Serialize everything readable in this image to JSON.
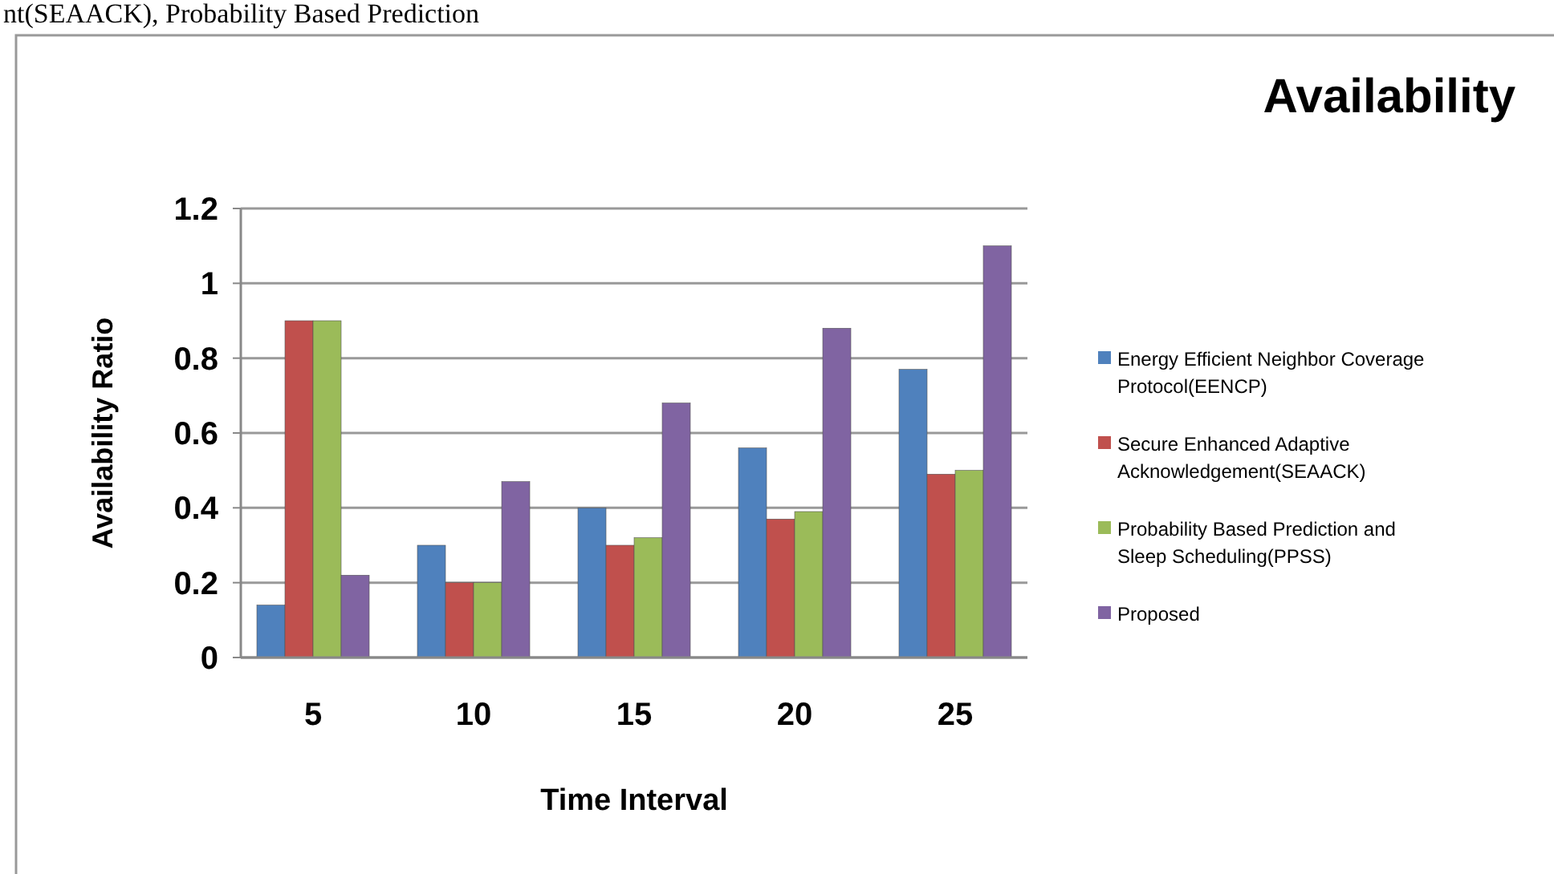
{
  "chart_data": {
    "type": "bar",
    "title": "Availability",
    "xlabel": "Time Interval",
    "ylabel": "Availability Ratio",
    "annotations": [
      "nt(SEAACK), Probability Based Prediction"
    ],
    "categories": [
      "5",
      "10",
      "15",
      "20",
      "25"
    ],
    "series": [
      {
        "name": "Energy Efficient Neighbor Coverage Protocol(EENCP)",
        "color": "#4f81bd",
        "values": [
          0.14,
          0.3,
          0.4,
          0.56,
          0.77
        ]
      },
      {
        "name": "Secure Enhanced Adaptive Acknowledgement(SEAACK)",
        "color": "#c0504d",
        "values": [
          0.9,
          0.2,
          0.3,
          0.37,
          0.49
        ]
      },
      {
        "name": "Probability Based Prediction and Sleep Scheduling(PPSS)",
        "color": "#9bbb59",
        "values": [
          0.9,
          0.2,
          0.32,
          0.39,
          0.5
        ]
      },
      {
        "name": "Proposed",
        "color": "#8064a2",
        "values": [
          0.22,
          0.47,
          0.68,
          0.88,
          1.1
        ]
      }
    ],
    "ylim": [
      0,
      1.2
    ],
    "yticks": [
      0,
      0.2,
      0.4,
      0.6,
      0.8,
      1,
      1.2
    ],
    "grid": "y",
    "legend": "right"
  }
}
